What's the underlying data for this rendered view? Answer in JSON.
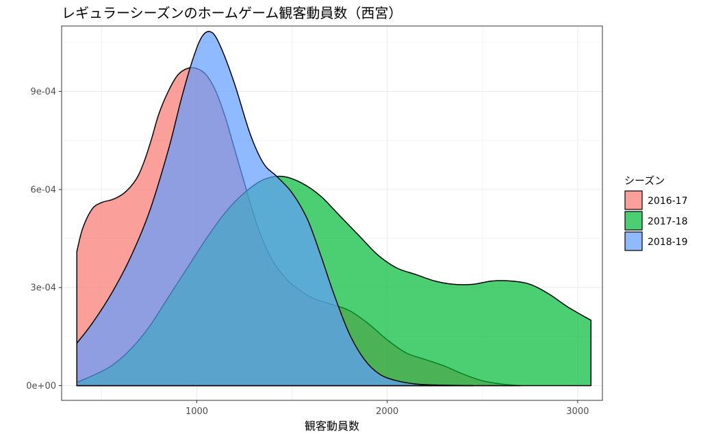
{
  "chart_data": {
    "type": "area",
    "subtype": "density",
    "title": "レギュラーシーズンのホームゲーム観客動員数（西宮）",
    "xlabel": "観客動員数",
    "ylabel": "",
    "xlim": [
      290,
      3130
    ],
    "ylim": [
      -4.5e-05,
      0.0011
    ],
    "xticks": [
      1000,
      2000,
      3000
    ],
    "xtick_labels": [
      "1000",
      "2000",
      "3000"
    ],
    "yticks": [
      0,
      0.0003,
      0.0006,
      0.0009
    ],
    "ytick_labels": [
      "0e+00",
      "3e-04",
      "6e-04",
      "9e-04"
    ],
    "grid": true,
    "legend": {
      "title": "シーズン",
      "position": "right"
    },
    "series": [
      {
        "name": "2016-17",
        "color": "#F8766D",
        "x": [
          370,
          400,
          450,
          500,
          560,
          620,
          680,
          720,
          760,
          800,
          850,
          900,
          950,
          1000,
          1050,
          1100,
          1150,
          1200,
          1250,
          1300,
          1350,
          1400,
          1450,
          1500,
          1600,
          1700,
          1800,
          1900,
          2000,
          2100,
          2200,
          2300,
          2400,
          2500,
          2600,
          2700
        ],
        "y": [
          0.00041,
          0.00048,
          0.00054,
          0.00056,
          0.00057,
          0.00059,
          0.00063,
          0.00068,
          0.00075,
          0.00083,
          0.0009,
          0.00095,
          0.00097,
          0.00097,
          0.00095,
          0.0009,
          0.00082,
          0.00072,
          0.00062,
          0.00052,
          0.00044,
          0.00038,
          0.00034,
          0.00031,
          0.00027,
          0.00025,
          0.00023,
          0.00019,
          0.00014,
          0.0001,
          8e-05,
          6e-05,
          3.5e-05,
          1.5e-05,
          5e-06,
          0.0
        ]
      },
      {
        "name": "2017-18",
        "color": "#00BA38",
        "x": [
          370,
          450,
          550,
          650,
          750,
          850,
          950,
          1050,
          1150,
          1250,
          1350,
          1450,
          1550,
          1650,
          1750,
          1850,
          1950,
          2050,
          2150,
          2250,
          2350,
          2450,
          2550,
          2650,
          2750,
          2850,
          2950,
          3070
        ],
        "y": [
          1e-05,
          3e-05,
          6e-05,
          0.00011,
          0.00018,
          0.00027,
          0.00036,
          0.00045,
          0.00053,
          0.00059,
          0.00063,
          0.00064,
          0.00062,
          0.00058,
          0.00052,
          0.00046,
          0.0004,
          0.00036,
          0.00034,
          0.00032,
          0.00031,
          0.00031,
          0.00032,
          0.00032,
          0.00031,
          0.00028,
          0.00024,
          0.0002
        ]
      },
      {
        "name": "2018-19",
        "color": "#619CFF",
        "x": [
          370,
          450,
          550,
          650,
          750,
          850,
          920,
          980,
          1030,
          1080,
          1130,
          1200,
          1280,
          1350,
          1420,
          1500,
          1580,
          1650,
          1720,
          1800,
          1880,
          1960,
          2050,
          2150,
          2250,
          2350,
          2450
        ],
        "y": [
          0.00013,
          0.00019,
          0.00028,
          0.00039,
          0.00053,
          0.00072,
          0.00088,
          0.001,
          0.00107,
          0.00108,
          0.00103,
          0.00092,
          0.00077,
          0.00068,
          0.00064,
          0.00059,
          0.00051,
          0.0004,
          0.00028,
          0.00016,
          8e-05,
          3.5e-05,
          1.5e-05,
          5e-06,
          2e-06,
          1e-06,
          0.0
        ]
      }
    ]
  }
}
